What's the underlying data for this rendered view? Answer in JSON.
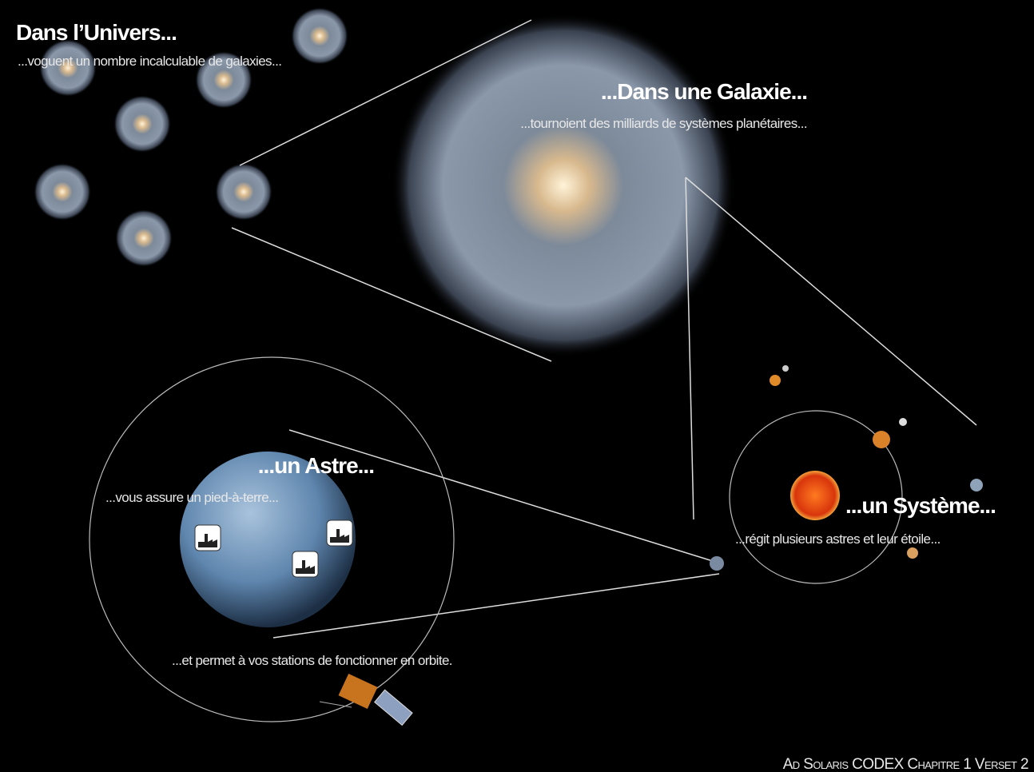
{
  "univers": {
    "title": "Dans l’Univers...",
    "text": "...voguent un nombre incalculable de galaxies..."
  },
  "galaxie": {
    "title": "...Dans une Galaxie...",
    "text": "...tournoient des milliards de systèmes planétaires..."
  },
  "astre": {
    "title": "...un Astre...",
    "text": "...vous assure un pied-à-terre...",
    "orbit_text": "...et permet à vos stations de fonctionner en orbite."
  },
  "systeme": {
    "title": "...un Système...",
    "text": "...régit plusieurs astres et leur étoile..."
  },
  "footer": "Ad Solaris CODEX Chapitre 1 Verset 2"
}
